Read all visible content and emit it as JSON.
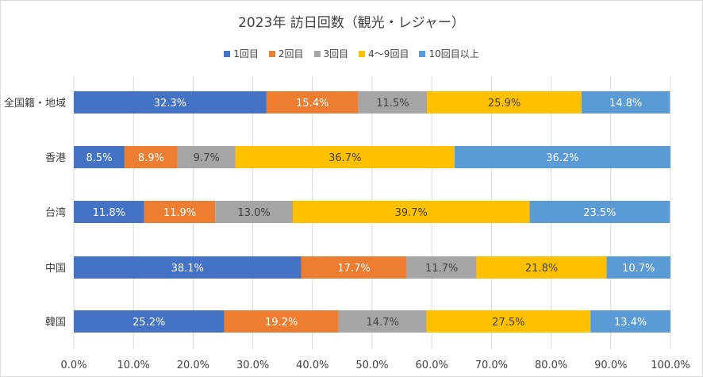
{
  "chart_data": {
    "type": "bar",
    "orientation": "horizontal",
    "stacked": true,
    "title": "2023年 訪日回数（観光・レジャー）",
    "categories": [
      "全国籍・地域",
      "香港",
      "台湾",
      "中国",
      "韓国"
    ],
    "series": [
      {
        "name": "1回目",
        "color": "#4472c4",
        "values": [
          32.3,
          8.5,
          11.8,
          38.1,
          25.2
        ]
      },
      {
        "name": "2回目",
        "color": "#ed7d31",
        "values": [
          15.4,
          8.9,
          11.9,
          17.7,
          19.2
        ]
      },
      {
        "name": "3回目",
        "color": "#a5a5a5",
        "values": [
          11.5,
          9.7,
          13.0,
          11.7,
          14.7
        ]
      },
      {
        "name": "4～9回目",
        "color": "#ffc000",
        "values": [
          25.9,
          36.7,
          39.7,
          21.8,
          27.5
        ]
      },
      {
        "name": "10回目以上",
        "color": "#5b9bd5",
        "values": [
          14.8,
          36.2,
          23.5,
          10.7,
          13.4
        ]
      }
    ],
    "label_colors": [
      "#ffffff",
      "#ffffff",
      "#404040",
      "#404040",
      "#ffffff"
    ],
    "xlim": [
      0,
      100
    ],
    "xticks": [
      "0.0%",
      "10.0%",
      "20.0%",
      "30.0%",
      "40.0%",
      "50.0%",
      "60.0%",
      "70.0%",
      "80.0%",
      "90.0%",
      "100.0%"
    ],
    "legend_position": "top",
    "grid": "vertical"
  }
}
